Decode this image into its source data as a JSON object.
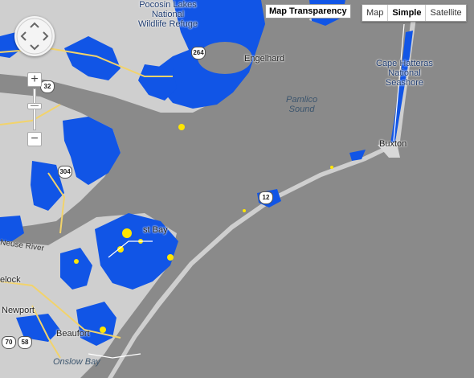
{
  "map": {
    "labels": {
      "pocosin": [
        "Pocosin Lakes",
        "National",
        "Wildlife Refuge"
      ],
      "pamlico": [
        "Pamlico",
        "Sound"
      ],
      "hatteras": [
        "Cape Hatteras",
        "National",
        "Seashore"
      ],
      "buxton": "Buxton",
      "engelhard": "Engelhard",
      "cedar_bay": "st Bay",
      "neuse_river": "Neuse River",
      "havelock": "elock",
      "newport": "Newport",
      "beaufort": "Beaufort",
      "onslow": "Onslow Bay"
    },
    "shields": {
      "s264": "264",
      "s32": "32",
      "s304": "304",
      "s12": "12",
      "s70": "70",
      "s58": "58"
    }
  },
  "controls": {
    "transparency_label": "Map Transparency",
    "map_types": [
      "Map",
      "Simple",
      "Satellite"
    ],
    "active_map_type": "Simple",
    "zoom_in": "+",
    "zoom_out": "−"
  },
  "colors": {
    "water": "#8a8a8a",
    "land": "#cfcfcf",
    "flood_blue": "#1155e6",
    "flood_yellow": "#ffe600",
    "road": "#f2d36b"
  }
}
